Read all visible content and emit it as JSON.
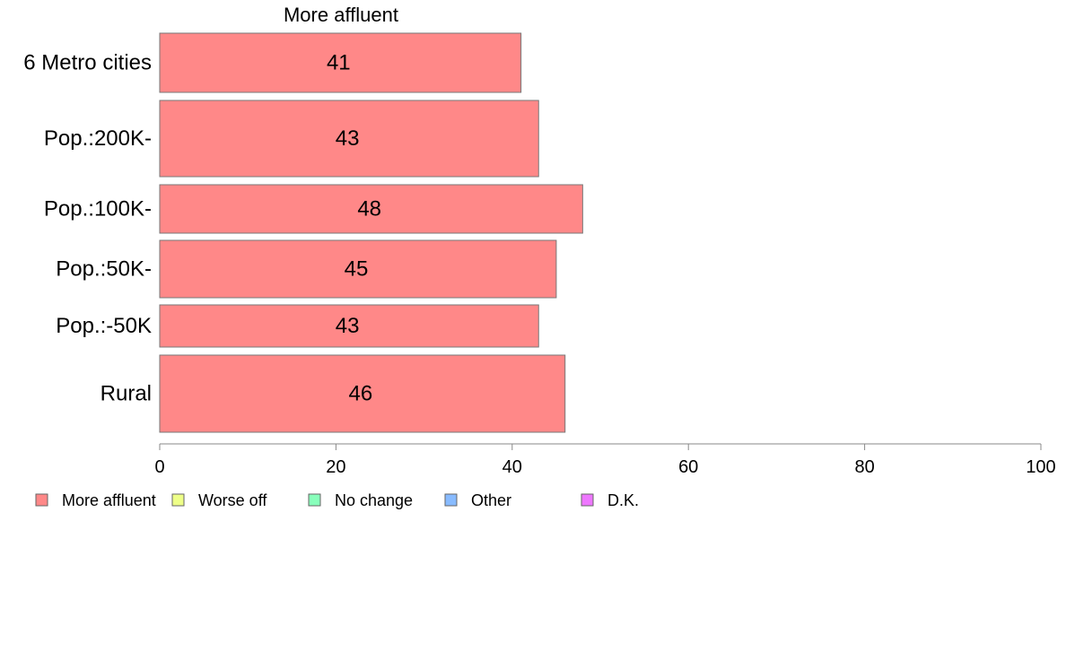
{
  "chart_data": {
    "type": "bar",
    "orientation": "horizontal",
    "title": "More affluent",
    "categories": [
      "6 Metro cities",
      "Pop.:200K-",
      "Pop.:100K-",
      "Pop.:50K-",
      "Pop.:-50K",
      "Rural"
    ],
    "series": [
      {
        "name": "More affluent",
        "values": [
          41,
          43,
          48,
          45,
          43,
          46
        ],
        "color": "#ff8888"
      }
    ],
    "xlim": [
      0,
      100
    ],
    "xticks": [
      0,
      20,
      40,
      60,
      80,
      100
    ],
    "grid": false,
    "legend": {
      "placement": "bottom-left",
      "entries": [
        {
          "label": "More affluent",
          "color": "#ff8888"
        },
        {
          "label": "Worse off",
          "color": "#eeff88"
        },
        {
          "label": "No change",
          "color": "#88ffbb"
        },
        {
          "label": "Other",
          "color": "#88bbff"
        },
        {
          "label": "D.K.",
          "color": "#ee77ff"
        }
      ]
    }
  }
}
